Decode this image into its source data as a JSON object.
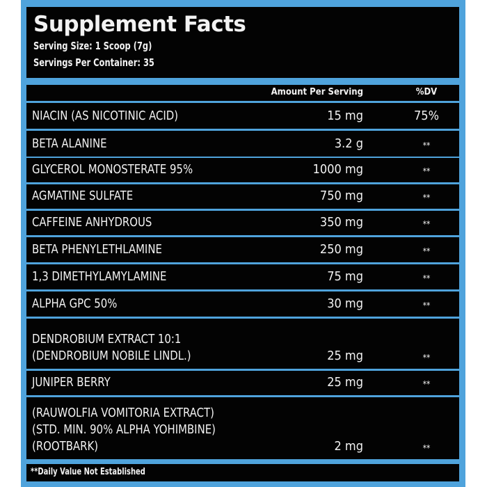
{
  "header": {
    "title": "Supplement Facts",
    "serving_size": "Serving Size: 1 Scoop (7g)",
    "servings_per_container": "Servings Per Container: 35"
  },
  "columns": {
    "amount": "Amount Per Serving",
    "dv": "%DV"
  },
  "rows": [
    {
      "name": "NIACIN (AS NICOTINIC ACID)",
      "amount": "15 mg",
      "dv": "75%"
    },
    {
      "name": "BETA ALANINE",
      "amount": "3.2 g",
      "dv": "**"
    },
    {
      "name": "GLYCEROL MONOSTERATE 95%",
      "amount": "1000 mg",
      "dv": "**"
    },
    {
      "name": "AGMATINE SULFATE",
      "amount": "750 mg",
      "dv": "**"
    },
    {
      "name": "CAFFEINE ANHYDROUS",
      "amount": "350 mg",
      "dv": "**"
    },
    {
      "name": "BETA PHENYLETHLAMINE",
      "amount": "250 mg",
      "dv": "**"
    },
    {
      "name": "1,3 DIMETHYLAMYLAMINE",
      "amount": "75 mg",
      "dv": "**"
    },
    {
      "name": "ALPHA GPC 50%",
      "amount": "30 mg",
      "dv": "**"
    },
    {
      "name": "DENDROBIUM EXTRACT 10:1\n(DENDROBIUM NOBILE LINDL.)",
      "amount": "25 mg",
      "dv": "**"
    },
    {
      "name": "JUNIPER BERRY",
      "amount": "25 mg",
      "dv": "**"
    },
    {
      "name": "(RAUWOLFIA VOMITORIA EXTRACT)\n(STD. MIN. 90% ALPHA YOHIMBINE)\n(ROOTBARK)",
      "amount": "2 mg",
      "dv": "**"
    }
  ],
  "footer": "**Daily Value Not Established",
  "colors": {
    "border": "#4fa3dc",
    "background": "#030303",
    "text": "#f2f2f2"
  }
}
